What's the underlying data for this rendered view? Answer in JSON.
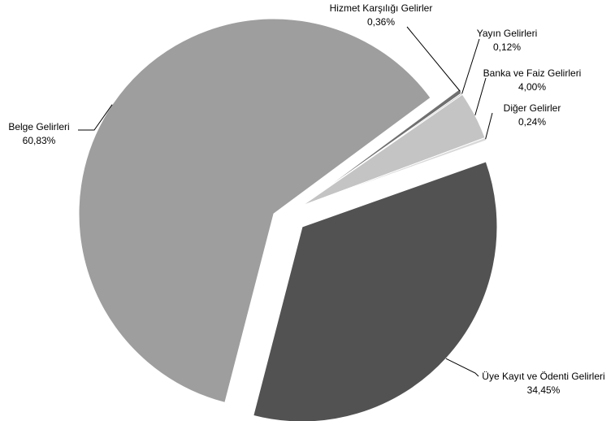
{
  "chart_data": {
    "type": "pie",
    "exploded": true,
    "start_angle_note": "clockwise from the 'Üye Kayıt ve Ödenti Gelirleri' slice",
    "slices": [
      {
        "label": "Üye Kayıt ve Ödenti Gelirleri",
        "value": 34.45,
        "value_label": "34,45%",
        "color": "#525252"
      },
      {
        "label": "Belge Gelirleri",
        "value": 60.83,
        "value_label": "60,83%",
        "color": "#9d9e9d"
      },
      {
        "label": "Hizmet Karşılığı Gelirler",
        "value": 0.36,
        "value_label": "0,36%",
        "color": "#707070"
      },
      {
        "label": "Yayın Gelirleri",
        "value": 0.12,
        "value_label": "0,12%",
        "color": "#b5b5b5"
      },
      {
        "label": "Banka ve Faiz Gelirleri",
        "value": 4.0,
        "value_label": "4,00%",
        "color": "#c4c4c4"
      },
      {
        "label": "Diğer Gelirler",
        "value": 0.24,
        "value_label": "0,24%",
        "color": "#d9d9d9"
      }
    ]
  }
}
